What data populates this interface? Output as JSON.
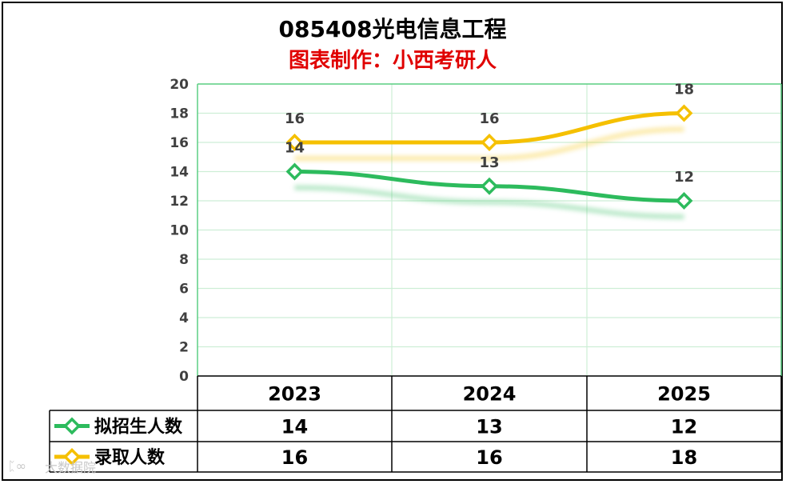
{
  "chart_data": {
    "type": "line",
    "title": "085408光电信息工程",
    "subtitle": "图表制作：小西考研人",
    "categories": [
      "2023",
      "2024",
      "2025"
    ],
    "ylim": [
      0,
      20
    ],
    "yticks": [
      "0",
      "2",
      "4",
      "6",
      "8",
      "10",
      "12",
      "14",
      "16",
      "18",
      "20"
    ],
    "grid": true,
    "legend": "data-table",
    "series": [
      {
        "name": "拟招生人数",
        "values": [
          14,
          13,
          12
        ],
        "color": "#2dbb5d"
      },
      {
        "name": "录取人数",
        "values": [
          16,
          16,
          18
        ],
        "color": "#f5c000"
      }
    ]
  },
  "watermark": "大数据院"
}
